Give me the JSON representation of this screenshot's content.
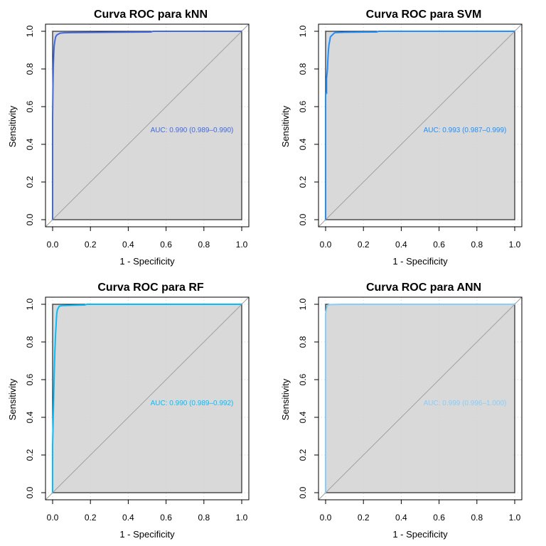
{
  "chart_data": [
    {
      "type": "line",
      "title": "Curva ROC para kNN",
      "xlabel": "1 - Specificity",
      "ylabel": "Sensitivity",
      "xlim": [
        0,
        1
      ],
      "ylim": [
        0,
        1
      ],
      "x_ticks": [
        "0.0",
        "0.2",
        "0.4",
        "0.6",
        "0.8",
        "1.0"
      ],
      "y_ticks": [
        "0.0",
        "0.2",
        "0.4",
        "0.6",
        "0.8",
        "1.0"
      ],
      "grid": true,
      "diagonal": true,
      "color": "#4169e1",
      "auc_text": "AUC: 0.990 (0.989–0.990)",
      "series": [
        {
          "x": [
            0,
            0,
            0.002,
            0.004,
            0.006,
            0.008,
            0.012,
            0.016,
            0.022,
            0.03,
            0.04,
            0.06,
            0.1,
            0.2,
            0.3,
            0.52,
            0.53,
            1.0
          ],
          "y": [
            0,
            0.54,
            0.72,
            0.82,
            0.88,
            0.92,
            0.95,
            0.97,
            0.98,
            0.985,
            0.99,
            0.992,
            0.993,
            0.994,
            0.995,
            0.996,
            1.0,
            1.0
          ]
        }
      ]
    },
    {
      "type": "line",
      "title": "Curva ROC para SVM",
      "xlabel": "1 - Specificity",
      "ylabel": "Sensitivity",
      "xlim": [
        0,
        1
      ],
      "ylim": [
        0,
        1
      ],
      "x_ticks": [
        "0.0",
        "0.2",
        "0.4",
        "0.6",
        "0.8",
        "1.0"
      ],
      "y_ticks": [
        "0.0",
        "0.2",
        "0.4",
        "0.6",
        "0.8",
        "1.0"
      ],
      "grid": true,
      "diagonal": true,
      "color": "#1e90ff",
      "auc_text": "AUC: 0.993 (0.987–0.999)",
      "series": [
        {
          "x": [
            0,
            0,
            0.005,
            0.005,
            0.01,
            0.012,
            0.015,
            0.018,
            0.022,
            0.025,
            0.03,
            0.035,
            0.045,
            0.05,
            0.1,
            0.27,
            0.28,
            1.0
          ],
          "y": [
            0,
            0.67,
            0.67,
            0.75,
            0.8,
            0.85,
            0.9,
            0.93,
            0.95,
            0.97,
            0.975,
            0.98,
            0.99,
            0.993,
            0.995,
            0.996,
            1.0,
            1.0
          ]
        }
      ]
    },
    {
      "type": "line",
      "title": "Curva ROC para RF",
      "xlabel": "1 - Specificity",
      "ylabel": "Sensitivity",
      "xlim": [
        0,
        1
      ],
      "ylim": [
        0,
        1
      ],
      "x_ticks": [
        "0.0",
        "0.2",
        "0.4",
        "0.6",
        "0.8",
        "1.0"
      ],
      "y_ticks": [
        "0.0",
        "0.2",
        "0.4",
        "0.6",
        "0.8",
        "1.0"
      ],
      "grid": true,
      "diagonal": true,
      "color": "#00bfff",
      "auc_text": "AUC: 0.990 (0.989–0.992)",
      "series": [
        {
          "x": [
            0,
            0,
            0.004,
            0.006,
            0.008,
            0.01,
            0.012,
            0.014,
            0.016,
            0.018,
            0.02,
            0.022,
            0.025,
            0.03,
            0.035,
            0.05,
            0.1,
            0.17,
            0.18,
            1.0
          ],
          "y": [
            0,
            0.25,
            0.43,
            0.52,
            0.6,
            0.68,
            0.75,
            0.8,
            0.85,
            0.88,
            0.92,
            0.95,
            0.97,
            0.98,
            0.99,
            0.993,
            0.995,
            0.996,
            1.0,
            1.0
          ]
        }
      ]
    },
    {
      "type": "line",
      "title": "Curva ROC para ANN",
      "xlabel": "1 - Specificity",
      "ylabel": "Sensitivity",
      "xlim": [
        0,
        1
      ],
      "ylim": [
        0,
        1
      ],
      "x_ticks": [
        "0.0",
        "0.2",
        "0.4",
        "0.6",
        "0.8",
        "1.0"
      ],
      "y_ticks": [
        "0.0",
        "0.2",
        "0.4",
        "0.6",
        "0.8",
        "1.0"
      ],
      "grid": true,
      "diagonal": true,
      "color": "#87cefa",
      "auc_text": "AUC: 0.999 (0.996–1.000)",
      "series": [
        {
          "x": [
            0,
            0,
            0.002,
            0.004,
            0.005,
            0.008,
            0.01,
            0.02,
            0.05,
            0.1,
            1.0
          ],
          "y": [
            0,
            0.95,
            0.96,
            0.97,
            0.98,
            0.99,
            0.995,
            0.998,
            0.999,
            1.0,
            1.0
          ]
        }
      ]
    }
  ]
}
